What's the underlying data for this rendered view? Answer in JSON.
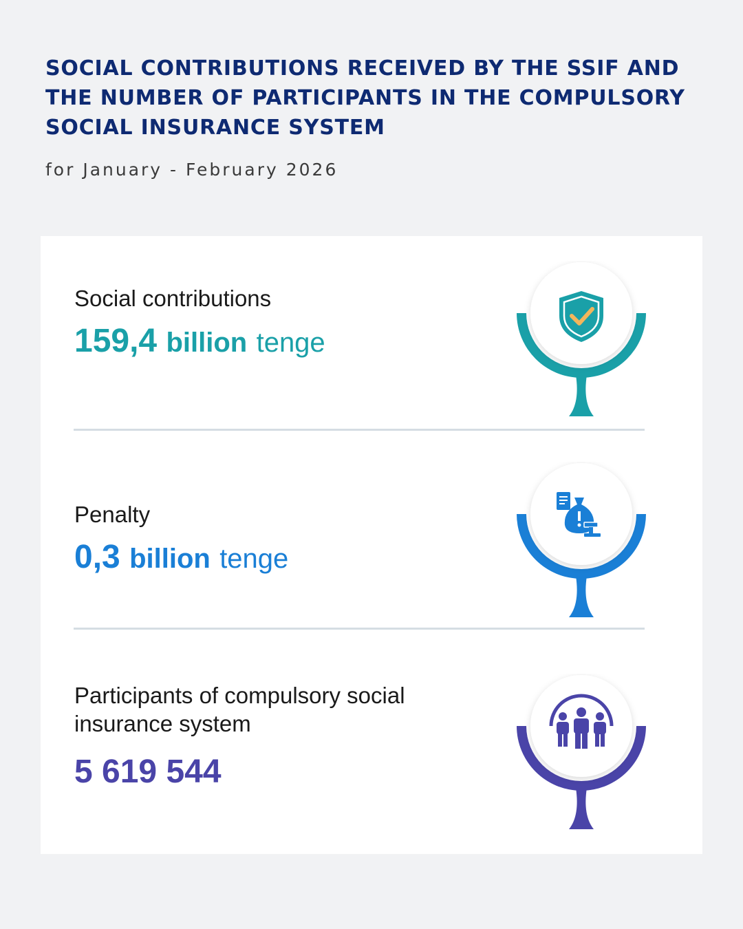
{
  "header": {
    "title": "SOCIAL CONTRIBUTIONS RECEIVED BY THE SSIF AND THE NUMBER OF PARTICIPANTS IN THE COMPULSORY SOCIAL INSURANCE SYSTEM",
    "subtitle": "for January - February 2026"
  },
  "stats": [
    {
      "label": "Social contributions",
      "number": "159,4",
      "unit": "billion",
      "currency": "tenge",
      "color": "#1aa0a8",
      "icon": "shield-check-icon"
    },
    {
      "label": "Penalty",
      "number": "0,3",
      "unit": "billion",
      "currency": "tenge",
      "color": "#1a7fd6",
      "icon": "money-bag-gavel-icon"
    },
    {
      "label": "Participants of compulsory social insurance system",
      "number": "5 619 544",
      "color": "#4a44a8",
      "icon": "people-group-icon"
    }
  ]
}
